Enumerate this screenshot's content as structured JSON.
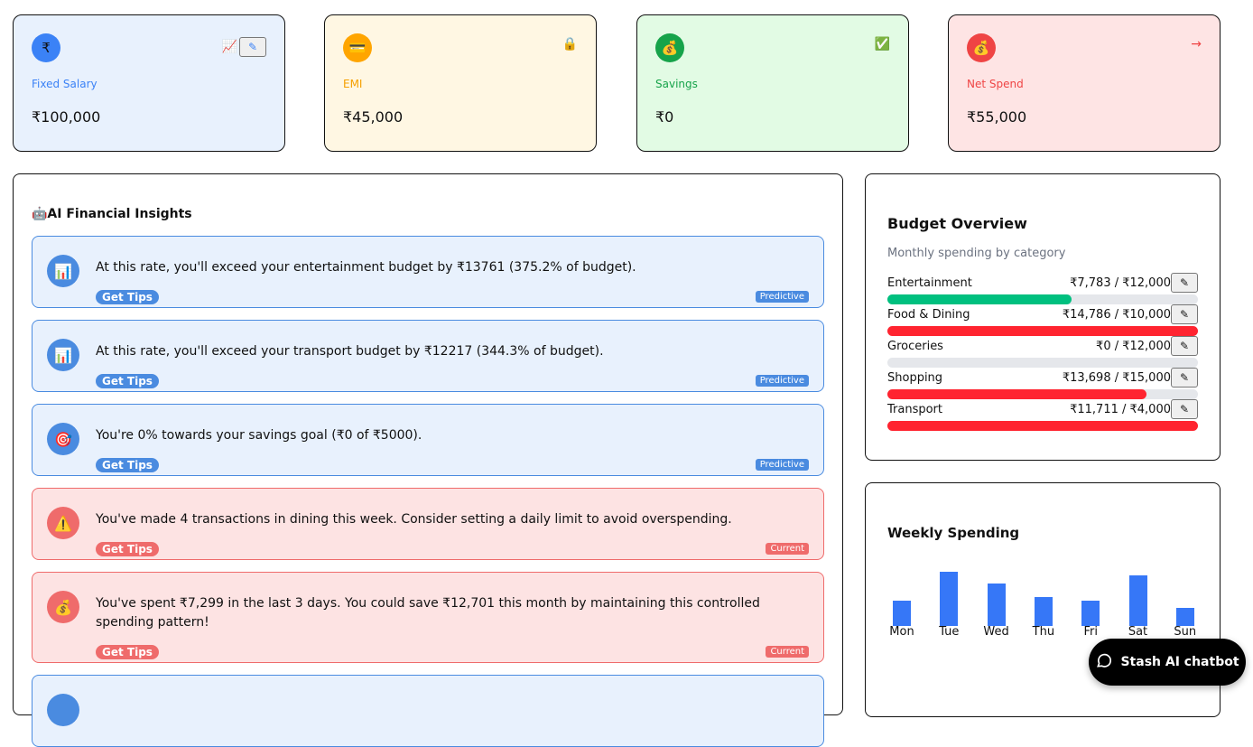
{
  "cards": [
    {
      "label": "Fixed Salary",
      "value": "₹100,000",
      "icon": "₹",
      "action_icon": "📈",
      "bg": "#e8f1fd",
      "color": "#3b82f6",
      "icon_bg": "#3b82f6"
    },
    {
      "label": "EMI",
      "value": "₹45,000",
      "icon": "💳",
      "action_icon": "🔒",
      "bg": "#fff7e3",
      "color": "#f5a000",
      "icon_bg": "#ffa500"
    },
    {
      "label": "Savings",
      "value": "₹0",
      "icon": "💰",
      "action_icon": "✅",
      "bg": "#e2fbe4",
      "color": "#16a34a",
      "icon_bg": "#16a34a"
    },
    {
      "label": "Net Spend",
      "value": "₹55,000",
      "icon": "💰",
      "action_icon": "→",
      "bg": "#fee4e4",
      "color": "#ef4444",
      "icon_bg": "#ef4444"
    }
  ],
  "edit_icon": "✎",
  "insights": {
    "title": "🤖AI Financial Insights",
    "items": [
      {
        "text": "At this rate, you'll exceed your entertainment budget by ₹13761 (375.2% of budget).",
        "icon": "📊",
        "tips": "Get Tips",
        "tag": "Predictive",
        "type": "blue"
      },
      {
        "text": "At this rate, you'll exceed your transport budget by ₹12217 (344.3% of budget).",
        "icon": "📊",
        "tips": "Get Tips",
        "tag": "Predictive",
        "type": "blue"
      },
      {
        "text": "You're 0% towards your savings goal (₹0 of ₹5000).",
        "icon": "🎯",
        "tips": "Get Tips",
        "tag": "Predictive",
        "type": "blue"
      },
      {
        "text": "You've made 4 transactions in dining this week. Consider setting a daily limit to avoid overspending.",
        "icon": "⚠️",
        "tips": "Get Tips",
        "tag": "Current",
        "type": "red"
      },
      {
        "text": "You've spent ₹7,299 in the last 3 days. You could save ₹12,701 this month by maintaining this controlled spending pattern!",
        "icon": "💰",
        "tips": "Get Tips",
        "tag": "Current",
        "type": "red"
      }
    ]
  },
  "budget": {
    "title": "Budget Overview",
    "subtitle": "Monthly spending by category",
    "items": [
      {
        "name": "Entertainment",
        "amount": "₹7,783 / ₹12,000",
        "progress": 0.65,
        "color": "#00c07f"
      },
      {
        "name": "Food & Dining",
        "amount": "₹14,786 / ₹10,000",
        "progress": 1,
        "color": "#ff2430"
      },
      {
        "name": "Groceries",
        "amount": "₹0 / ₹12,000",
        "progress": 0,
        "color": "#ff2430"
      },
      {
        "name": "Shopping",
        "amount": "₹13,698 / ₹15,000",
        "progress": 0.913,
        "color": "#ff2430"
      },
      {
        "name": "Transport",
        "amount": "₹11,711 / ₹4,000",
        "progress": 1,
        "color": "#ff2430"
      }
    ]
  },
  "chart_data": {
    "type": "bar",
    "title": "Weekly Spending",
    "categories": [
      "Mon",
      "Tue",
      "Wed",
      "Thu",
      "Fri",
      "Sat",
      "Sun"
    ],
    "values": [
      28,
      60,
      47,
      32,
      28,
      56,
      20
    ],
    "color": "#3677f7"
  },
  "chat": {
    "label": "Stash AI chatbot"
  }
}
